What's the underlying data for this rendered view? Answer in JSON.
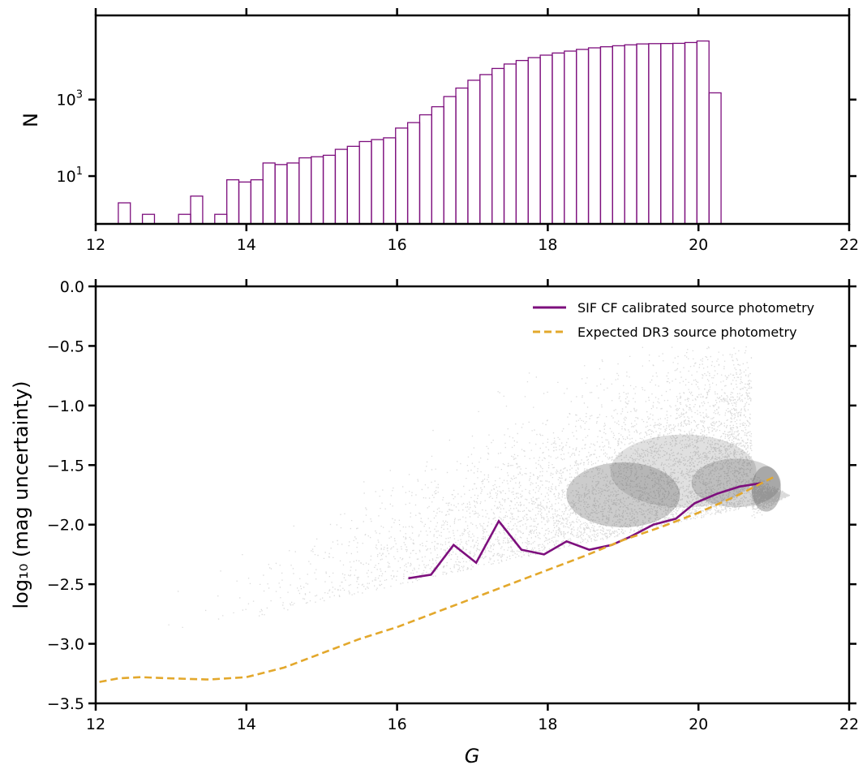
{
  "colors": {
    "hist": "#7d0f7d",
    "sif_line": "#7d0f7d",
    "expected_line": "#e3a82c",
    "scatter": "#555555",
    "axis": "#000000"
  },
  "chart_data": [
    {
      "type": "histogram",
      "ylabel": "N",
      "xlim": [
        12,
        22
      ],
      "ylim_log10": [
        -0.25,
        5.2
      ],
      "yscale": "log",
      "x_ticks": [
        "12",
        "14",
        "16",
        "18",
        "20",
        "22"
      ],
      "y_ticks": [
        {
          "base": "10",
          "exp": "3",
          "value": 1000
        },
        {
          "base": "10",
          "exp": "1",
          "value": 10
        }
      ],
      "bin_width": 0.16,
      "bin_start": 12.3,
      "counts": [
        2,
        0,
        1,
        0,
        0,
        1,
        3,
        0,
        1,
        8,
        7,
        8,
        22,
        20,
        22,
        30,
        32,
        35,
        50,
        60,
        80,
        90,
        100,
        180,
        250,
        400,
        650,
        1200,
        2000,
        3200,
        4500,
        6500,
        8500,
        10500,
        12500,
        14500,
        16500,
        18500,
        20500,
        22500,
        24000,
        25500,
        27000,
        28500,
        29000,
        29200,
        29500,
        31000,
        34000,
        1500
      ]
    },
    {
      "type": "line+scatter",
      "xlabel": "G",
      "ylabel": "log₁₀ (mag uncertainty)",
      "xlim": [
        12,
        22
      ],
      "ylim": [
        -3.5,
        0.0
      ],
      "x_ticks": [
        "12",
        "14",
        "16",
        "18",
        "20",
        "22"
      ],
      "y_ticks": [
        "0.0",
        "−0.5",
        "−1.0",
        "−1.5",
        "−2.0",
        "−2.5",
        "−3.0",
        "−3.5"
      ],
      "legend_position": "top-right",
      "series": [
        {
          "name": "SIF CF calibrated source photometry",
          "style": "solid",
          "x": [
            16.15,
            16.45,
            16.75,
            17.05,
            17.35,
            17.65,
            17.95,
            18.25,
            18.55,
            18.85,
            19.1,
            19.4,
            19.7,
            19.95,
            20.25,
            20.55,
            20.85
          ],
          "y": [
            -2.45,
            -2.42,
            -2.17,
            -2.32,
            -1.97,
            -2.21,
            -2.25,
            -2.14,
            -2.21,
            -2.17,
            -2.1,
            -2.0,
            -1.95,
            -1.82,
            -1.74,
            -1.68,
            -1.65
          ]
        },
        {
          "name": "Expected DR3 source photometry",
          "style": "dashed",
          "x": [
            12.05,
            12.3,
            12.6,
            13.0,
            13.5,
            14.0,
            14.5,
            15.0,
            15.5,
            16.0,
            16.5,
            17.0,
            17.5,
            18.0,
            18.5,
            19.0,
            19.5,
            20.0,
            20.5,
            21.0
          ],
          "y": [
            -3.32,
            -3.29,
            -3.28,
            -3.29,
            -3.3,
            -3.28,
            -3.2,
            -3.08,
            -2.96,
            -2.86,
            -2.74,
            -2.62,
            -2.5,
            -2.38,
            -2.26,
            -2.13,
            -2.02,
            -1.9,
            -1.76,
            -1.6
          ]
        }
      ]
    }
  ]
}
